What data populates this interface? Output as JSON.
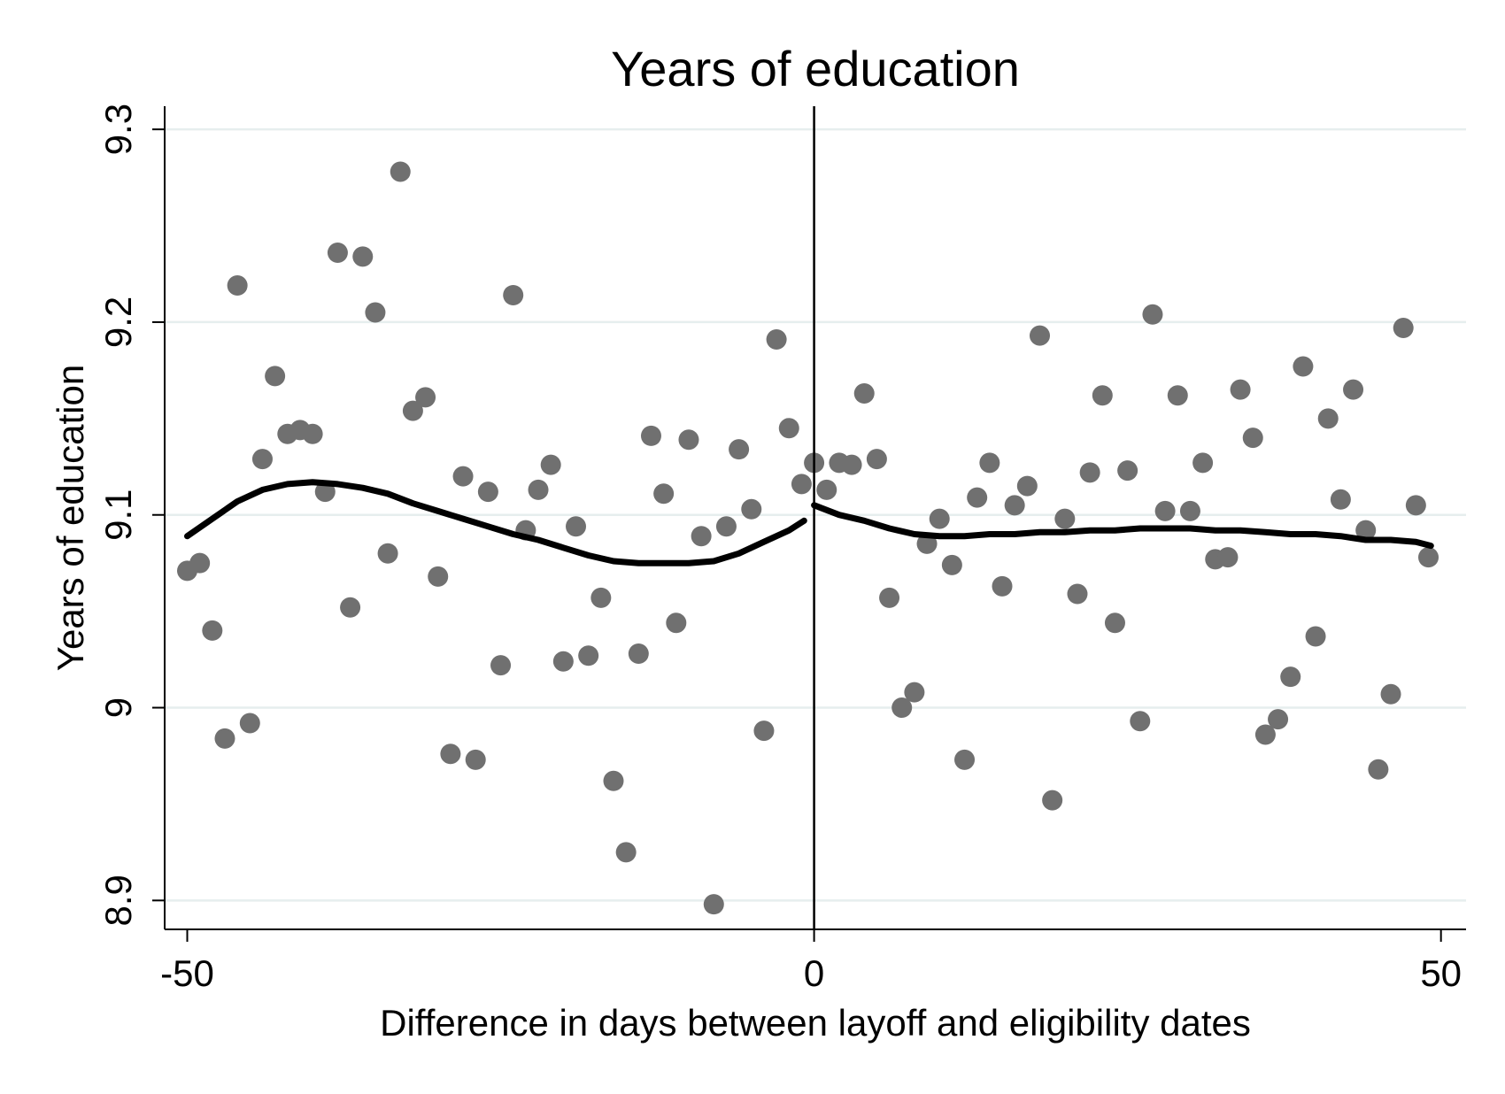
{
  "chart_data": {
    "type": "scatter",
    "title": "Years of education",
    "xlabel": "Difference in days between layoff and eligibility dates",
    "ylabel": "Years of education",
    "xlim": [
      -51.8,
      52
    ],
    "ylim": [
      8.885,
      9.312
    ],
    "xticks": [
      {
        "value": -50,
        "label": "-50"
      },
      {
        "value": 0,
        "label": "0"
      },
      {
        "value": 50,
        "label": "50"
      }
    ],
    "yticks": [
      {
        "value": 8.9,
        "label": "8.9"
      },
      {
        "value": 9.0,
        "label": "9"
      },
      {
        "value": 9.1,
        "label": "9.1"
      },
      {
        "value": 9.2,
        "label": "9.2"
      },
      {
        "value": 9.3,
        "label": "9.3"
      }
    ],
    "grid": true,
    "cutoff_x": 0,
    "series": [
      {
        "type": "scatter",
        "color": "#707070",
        "points": [
          [
            -50,
            9.071
          ],
          [
            -49,
            9.075
          ],
          [
            -48,
            9.04
          ],
          [
            -47,
            8.984
          ],
          [
            -46,
            9.219
          ],
          [
            -45,
            8.992
          ],
          [
            -44,
            9.129
          ],
          [
            -43,
            9.172
          ],
          [
            -42,
            9.142
          ],
          [
            -41,
            9.144
          ],
          [
            -40,
            9.142
          ],
          [
            -39,
            9.112
          ],
          [
            -38,
            9.236
          ],
          [
            -37,
            9.052
          ],
          [
            -36,
            9.234
          ],
          [
            -35,
            9.205
          ],
          [
            -34,
            9.08
          ],
          [
            -33,
            9.278
          ],
          [
            -32,
            9.154
          ],
          [
            -31,
            9.161
          ],
          [
            -30,
            9.068
          ],
          [
            -29,
            8.976
          ],
          [
            -28,
            9.12
          ],
          [
            -27,
            8.973
          ],
          [
            -26,
            9.112
          ],
          [
            -25,
            9.022
          ],
          [
            -24,
            9.214
          ],
          [
            -23,
            9.092
          ],
          [
            -22,
            9.113
          ],
          [
            -21,
            9.126
          ],
          [
            -20,
            9.024
          ],
          [
            -19,
            9.094
          ],
          [
            -18,
            9.027
          ],
          [
            -17,
            9.057
          ],
          [
            -16,
            8.962
          ],
          [
            -15,
            8.925
          ],
          [
            -14,
            9.028
          ],
          [
            -13,
            9.141
          ],
          [
            -12,
            9.111
          ],
          [
            -11,
            9.044
          ],
          [
            -10,
            9.139
          ],
          [
            -9,
            9.089
          ],
          [
            -8,
            8.898
          ],
          [
            -7,
            9.094
          ],
          [
            -6,
            9.134
          ],
          [
            -5,
            9.103
          ],
          [
            -4,
            8.988
          ],
          [
            -3,
            9.191
          ],
          [
            -2,
            9.145
          ],
          [
            -1,
            9.116
          ],
          [
            0,
            9.127
          ],
          [
            1,
            9.113
          ],
          [
            2,
            9.127
          ],
          [
            3,
            9.126
          ],
          [
            4,
            9.163
          ],
          [
            5,
            9.129
          ],
          [
            6,
            9.057
          ],
          [
            7,
            9.0
          ],
          [
            8,
            9.008
          ],
          [
            9,
            9.085
          ],
          [
            10,
            9.098
          ],
          [
            11,
            9.074
          ],
          [
            12,
            8.973
          ],
          [
            13,
            9.109
          ],
          [
            14,
            9.127
          ],
          [
            15,
            9.063
          ],
          [
            16,
            9.105
          ],
          [
            17,
            9.115
          ],
          [
            18,
            9.193
          ],
          [
            19,
            8.952
          ],
          [
            20,
            9.098
          ],
          [
            21,
            9.059
          ],
          [
            22,
            9.122
          ],
          [
            23,
            9.162
          ],
          [
            24,
            9.044
          ],
          [
            25,
            9.123
          ],
          [
            26,
            8.993
          ],
          [
            27,
            9.204
          ],
          [
            28,
            9.102
          ],
          [
            29,
            9.162
          ],
          [
            30,
            9.102
          ],
          [
            31,
            9.127
          ],
          [
            32,
            9.077
          ],
          [
            33,
            9.078
          ],
          [
            34,
            9.165
          ],
          [
            35,
            9.14
          ],
          [
            36,
            8.986
          ],
          [
            37,
            8.994
          ],
          [
            38,
            9.016
          ],
          [
            39,
            9.177
          ],
          [
            40,
            9.037
          ],
          [
            41,
            9.15
          ],
          [
            42,
            9.108
          ],
          [
            43,
            9.165
          ],
          [
            44,
            9.092
          ],
          [
            45,
            8.968
          ],
          [
            46,
            9.007
          ],
          [
            47,
            9.197
          ],
          [
            48,
            9.105
          ],
          [
            49,
            9.078
          ]
        ]
      },
      {
        "type": "line",
        "segment": "left",
        "color": "#000000",
        "points": [
          [
            -50,
            9.089
          ],
          [
            -48,
            9.098
          ],
          [
            -46,
            9.107
          ],
          [
            -44,
            9.113
          ],
          [
            -42,
            9.116
          ],
          [
            -40,
            9.117
          ],
          [
            -38,
            9.116
          ],
          [
            -36,
            9.114
          ],
          [
            -34,
            9.111
          ],
          [
            -32,
            9.106
          ],
          [
            -30,
            9.102
          ],
          [
            -28,
            9.098
          ],
          [
            -26,
            9.094
          ],
          [
            -24,
            9.09
          ],
          [
            -22,
            9.087
          ],
          [
            -20,
            9.083
          ],
          [
            -18,
            9.079
          ],
          [
            -16,
            9.076
          ],
          [
            -14,
            9.075
          ],
          [
            -12,
            9.075
          ],
          [
            -10,
            9.075
          ],
          [
            -8,
            9.076
          ],
          [
            -6,
            9.08
          ],
          [
            -4,
            9.086
          ],
          [
            -2,
            9.092
          ],
          [
            -0.8,
            9.097
          ]
        ]
      },
      {
        "type": "line",
        "segment": "right",
        "color": "#000000",
        "points": [
          [
            0,
            9.105
          ],
          [
            2,
            9.1
          ],
          [
            4,
            9.097
          ],
          [
            6,
            9.093
          ],
          [
            8,
            9.09
          ],
          [
            10,
            9.089
          ],
          [
            12,
            9.089
          ],
          [
            14,
            9.09
          ],
          [
            16,
            9.09
          ],
          [
            18,
            9.091
          ],
          [
            20,
            9.091
          ],
          [
            22,
            9.092
          ],
          [
            24,
            9.092
          ],
          [
            26,
            9.093
          ],
          [
            28,
            9.093
          ],
          [
            30,
            9.093
          ],
          [
            32,
            9.092
          ],
          [
            34,
            9.092
          ],
          [
            36,
            9.091
          ],
          [
            38,
            9.09
          ],
          [
            40,
            9.09
          ],
          [
            42,
            9.089
          ],
          [
            44,
            9.087
          ],
          [
            46,
            9.087
          ],
          [
            48,
            9.086
          ],
          [
            49.2,
            9.084
          ]
        ]
      }
    ]
  }
}
